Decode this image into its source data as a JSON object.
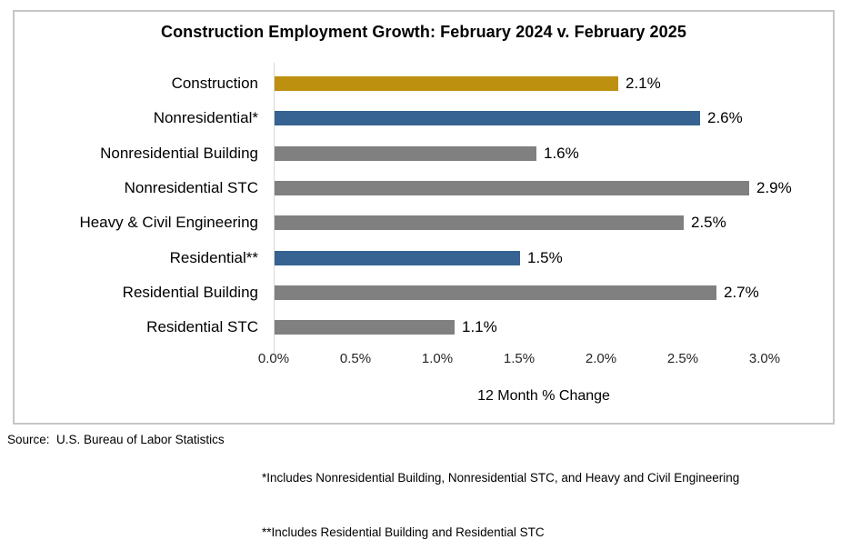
{
  "chart_data": {
    "type": "bar",
    "orientation": "horizontal",
    "title": "Construction Employment Growth: February 2024 v. February 2025",
    "categories": [
      "Construction",
      "Nonresidential*",
      "Nonresidential Building",
      "Nonresidential STC",
      "Heavy & Civil Engineering",
      "Residential**",
      "Residential Building",
      "Residential STC"
    ],
    "values": [
      2.1,
      2.6,
      1.6,
      2.9,
      2.5,
      1.5,
      2.7,
      1.1
    ],
    "value_labels": [
      "2.1%",
      "2.6%",
      "1.6%",
      "2.9%",
      "2.5%",
      "1.5%",
      "2.7%",
      "1.1%"
    ],
    "bar_colors": [
      "#BD9010",
      "#366391",
      "#808080",
      "#808080",
      "#808080",
      "#366391",
      "#808080",
      "#808080"
    ],
    "xlabel": "12 Month % Change",
    "xlim": [
      0,
      3
    ],
    "xticks": [
      0,
      0.5,
      1,
      1.5,
      2,
      2.5,
      3
    ],
    "xtick_labels": [
      "0.0%",
      "0.5%",
      "1.0%",
      "1.5%",
      "2.0%",
      "2.5%",
      "3.0%"
    ],
    "grid": false,
    "legend": "none"
  },
  "footer": {
    "source": "Source:  U.S. Bureau of Labor Statistics",
    "footnote1": "*Includes Nonresidential Building, Nonresidential STC, and Heavy and Civil Engineering",
    "footnote2": "**Includes Residential Building and Residential STC"
  },
  "colors": {
    "gold": "#BD9010",
    "blue": "#366391",
    "gray": "#808080",
    "axis_line": "#D9D9D9",
    "frame_border": "#C6C6C6",
    "text": "#000000"
  }
}
